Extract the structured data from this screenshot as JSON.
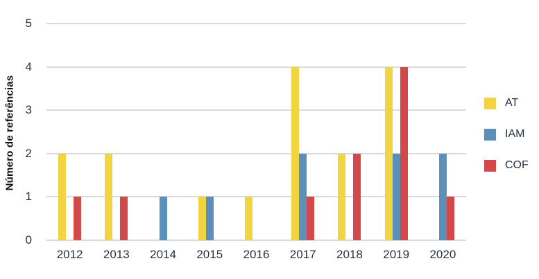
{
  "chart_data": {
    "type": "bar",
    "title": "",
    "ylabel": "Número de referências",
    "xlabel": "",
    "categories": [
      "2012",
      "2013",
      "2014",
      "2015",
      "2016",
      "2017",
      "2018",
      "2019",
      "2020"
    ],
    "series": [
      {
        "name": "AT",
        "color": "#F2D341",
        "values": [
          2,
          2,
          0,
          1,
          1,
          4,
          2,
          4,
          0
        ]
      },
      {
        "name": "IAM",
        "color": "#5D8FBB",
        "values": [
          0,
          0,
          1,
          1,
          0,
          2,
          0,
          2,
          2
        ]
      },
      {
        "name": "COF",
        "color": "#D3494A",
        "values": [
          1,
          1,
          0,
          0,
          0,
          1,
          2,
          4,
          1
        ]
      }
    ],
    "yticks": [
      0,
      1,
      2,
      3,
      4,
      5
    ],
    "ylim": [
      0,
      5
    ],
    "grid": true,
    "legend_position": "right"
  },
  "colors": {
    "background": "#ffffff",
    "gridline": "#d9d9d9",
    "tick_text": "#263240",
    "axis_title_text": "#111111"
  }
}
